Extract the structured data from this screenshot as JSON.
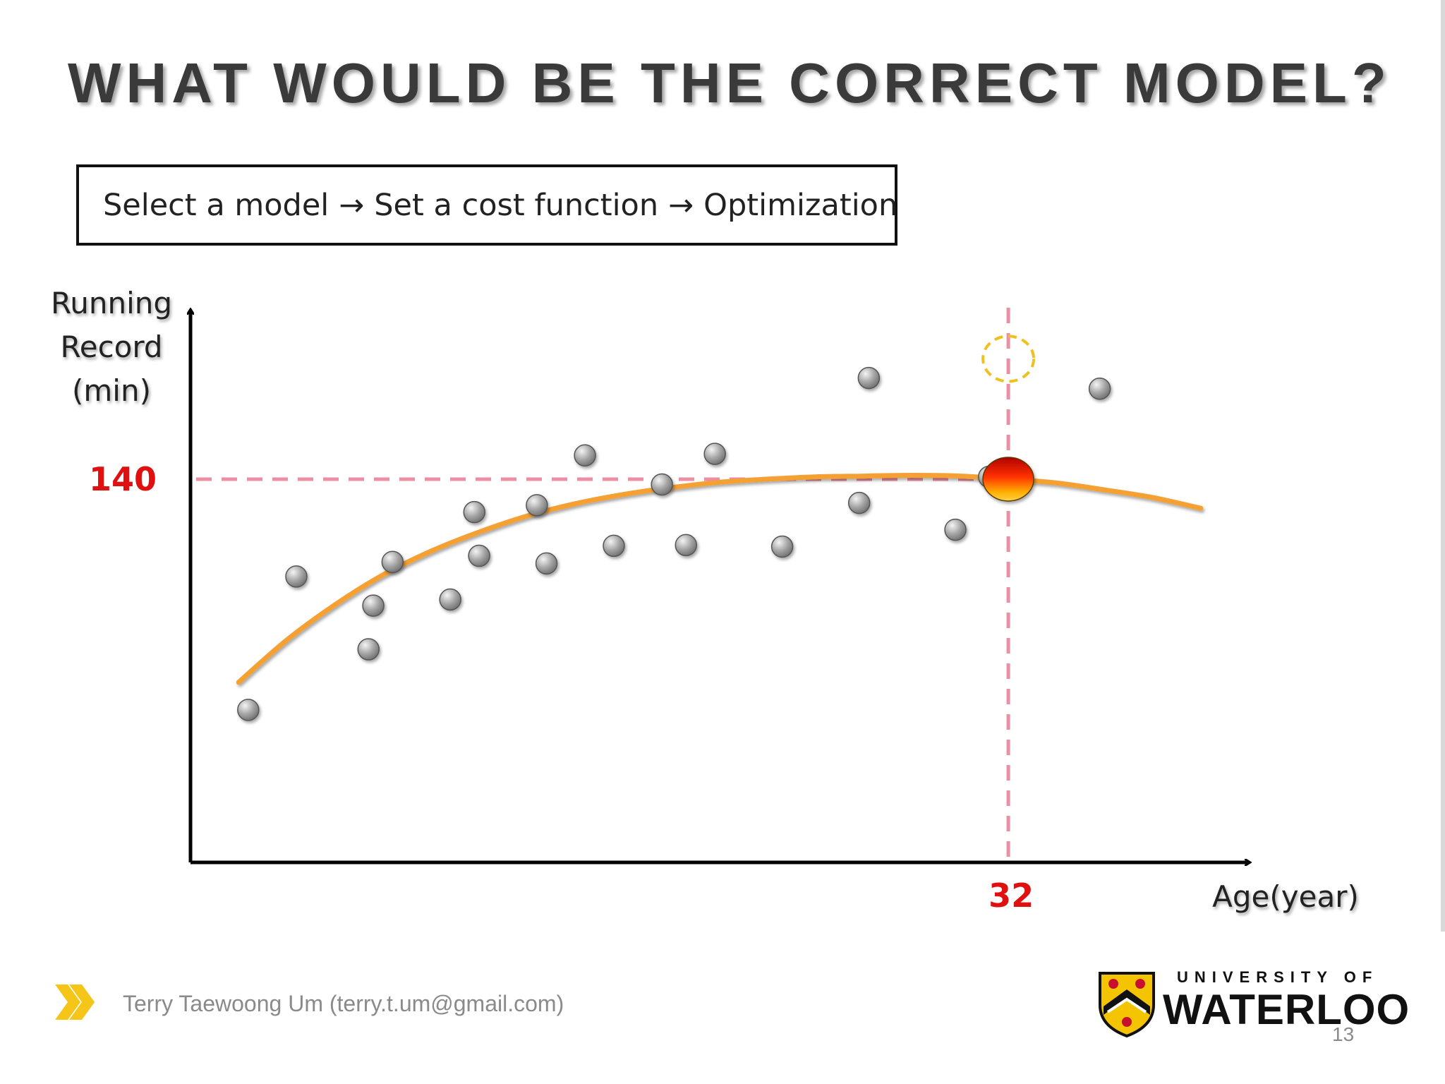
{
  "slide": {
    "title": "WHAT WOULD BE THE CORRECT MODEL?",
    "pipeline": [
      "Select a model",
      "Set a cost function",
      "Optimization"
    ],
    "pipeline_arrow": "→",
    "footer_author": "Terry Taewoong Um (terry.t.um@gmail.com)",
    "page_number": "13",
    "logo_top": "UNIVERSITY OF",
    "logo_main": "WATERLOO"
  },
  "colors": {
    "title": "#3a3a3a",
    "curve": "#f5a030",
    "guide": "#ec8ea4",
    "marker_label": "#e01010",
    "point": "#9a9a9a",
    "footer_chevron": "#f5c518",
    "predicted_ring": "#f0c020"
  },
  "chart_data": {
    "type": "scatter",
    "ylabel_lines": [
      "Running",
      "Record",
      "(min)"
    ],
    "xlabel": "Age(year)",
    "x_marker": {
      "value": 32,
      "label": "32"
    },
    "y_marker": {
      "value": 140,
      "label": "140"
    },
    "xlim": [
      15,
      37
    ],
    "ylim": [
      90,
      162
    ],
    "grid": false,
    "legend": "none",
    "points": [
      {
        "x": 16.2,
        "y": 109.9
      },
      {
        "x": 17.2,
        "y": 127.3
      },
      {
        "x": 18.7,
        "y": 117.8
      },
      {
        "x": 18.8,
        "y": 123.5
      },
      {
        "x": 19.2,
        "y": 129.2
      },
      {
        "x": 20.4,
        "y": 124.3
      },
      {
        "x": 20.9,
        "y": 135.7
      },
      {
        "x": 21.0,
        "y": 130.0
      },
      {
        "x": 22.2,
        "y": 136.6
      },
      {
        "x": 22.4,
        "y": 129.0
      },
      {
        "x": 23.2,
        "y": 143.1
      },
      {
        "x": 23.8,
        "y": 131.3
      },
      {
        "x": 24.8,
        "y": 139.3
      },
      {
        "x": 25.3,
        "y": 131.4
      },
      {
        "x": 25.9,
        "y": 143.3
      },
      {
        "x": 27.3,
        "y": 131.2
      },
      {
        "x": 28.9,
        "y": 136.9
      },
      {
        "x": 29.1,
        "y": 153.2
      },
      {
        "x": 30.9,
        "y": 133.4
      },
      {
        "x": 31.6,
        "y": 140.3
      },
      {
        "x": 33.9,
        "y": 151.8
      }
    ],
    "fit_curve": {
      "name": "",
      "x": [
        16.0,
        17.0,
        18.0,
        19.0,
        20.0,
        21.0,
        22.0,
        23.0,
        24.0,
        25.0,
        26.0,
        27.0,
        28.0,
        29.0,
        30.0,
        31.0,
        32.0,
        33.0,
        34.0,
        35.0,
        36.0
      ],
      "y": [
        113.5,
        119.0,
        123.6,
        127.5,
        130.6,
        133.1,
        135.2,
        136.8,
        138.0,
        138.9,
        139.6,
        140.0,
        140.3,
        140.4,
        140.5,
        140.4,
        140.0,
        139.5,
        138.6,
        137.6,
        136.2
      ]
    },
    "prediction": {
      "x": 32,
      "y": 140
    },
    "alternative_prediction": {
      "x": 32,
      "y": 155.7
    }
  }
}
